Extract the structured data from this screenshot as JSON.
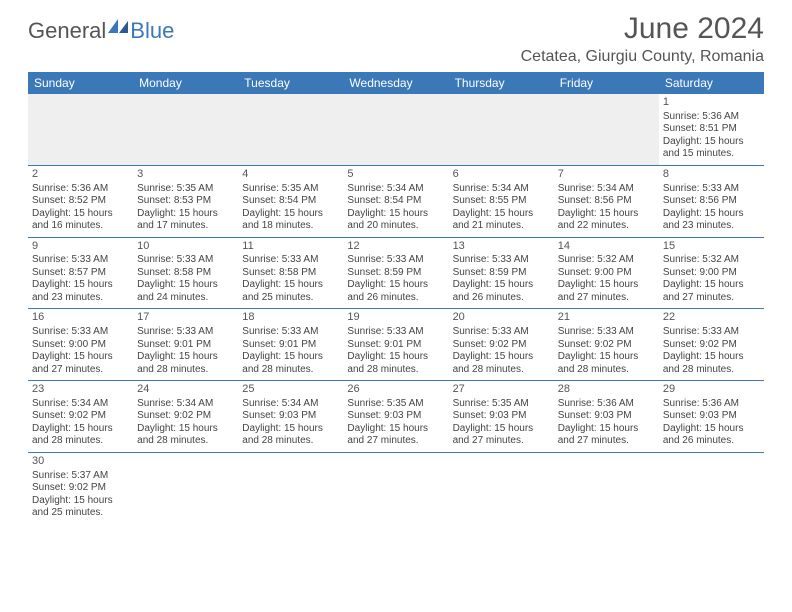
{
  "brand": {
    "part1": "General",
    "part2": "Blue"
  },
  "title": "June 2024",
  "location": "Cetatea, Giurgiu County, Romania",
  "colors": {
    "header_bg": "#3b78b8",
    "header_text": "#ffffff",
    "row_border": "#3b78b8",
    "blank_bg": "#efefef",
    "body_text": "#444444",
    "title_text": "#555555"
  },
  "day_headers": [
    "Sunday",
    "Monday",
    "Tuesday",
    "Wednesday",
    "Thursday",
    "Friday",
    "Saturday"
  ],
  "weeks": [
    [
      null,
      null,
      null,
      null,
      null,
      null,
      {
        "n": "1",
        "sr": "5:36 AM",
        "ss": "8:51 PM",
        "dl": "15 hours and 15 minutes."
      }
    ],
    [
      {
        "n": "2",
        "sr": "5:36 AM",
        "ss": "8:52 PM",
        "dl": "15 hours and 16 minutes."
      },
      {
        "n": "3",
        "sr": "5:35 AM",
        "ss": "8:53 PM",
        "dl": "15 hours and 17 minutes."
      },
      {
        "n": "4",
        "sr": "5:35 AM",
        "ss": "8:54 PM",
        "dl": "15 hours and 18 minutes."
      },
      {
        "n": "5",
        "sr": "5:34 AM",
        "ss": "8:54 PM",
        "dl": "15 hours and 20 minutes."
      },
      {
        "n": "6",
        "sr": "5:34 AM",
        "ss": "8:55 PM",
        "dl": "15 hours and 21 minutes."
      },
      {
        "n": "7",
        "sr": "5:34 AM",
        "ss": "8:56 PM",
        "dl": "15 hours and 22 minutes."
      },
      {
        "n": "8",
        "sr": "5:33 AM",
        "ss": "8:56 PM",
        "dl": "15 hours and 23 minutes."
      }
    ],
    [
      {
        "n": "9",
        "sr": "5:33 AM",
        "ss": "8:57 PM",
        "dl": "15 hours and 23 minutes."
      },
      {
        "n": "10",
        "sr": "5:33 AM",
        "ss": "8:58 PM",
        "dl": "15 hours and 24 minutes."
      },
      {
        "n": "11",
        "sr": "5:33 AM",
        "ss": "8:58 PM",
        "dl": "15 hours and 25 minutes."
      },
      {
        "n": "12",
        "sr": "5:33 AM",
        "ss": "8:59 PM",
        "dl": "15 hours and 26 minutes."
      },
      {
        "n": "13",
        "sr": "5:33 AM",
        "ss": "8:59 PM",
        "dl": "15 hours and 26 minutes."
      },
      {
        "n": "14",
        "sr": "5:32 AM",
        "ss": "9:00 PM",
        "dl": "15 hours and 27 minutes."
      },
      {
        "n": "15",
        "sr": "5:32 AM",
        "ss": "9:00 PM",
        "dl": "15 hours and 27 minutes."
      }
    ],
    [
      {
        "n": "16",
        "sr": "5:33 AM",
        "ss": "9:00 PM",
        "dl": "15 hours and 27 minutes."
      },
      {
        "n": "17",
        "sr": "5:33 AM",
        "ss": "9:01 PM",
        "dl": "15 hours and 28 minutes."
      },
      {
        "n": "18",
        "sr": "5:33 AM",
        "ss": "9:01 PM",
        "dl": "15 hours and 28 minutes."
      },
      {
        "n": "19",
        "sr": "5:33 AM",
        "ss": "9:01 PM",
        "dl": "15 hours and 28 minutes."
      },
      {
        "n": "20",
        "sr": "5:33 AM",
        "ss": "9:02 PM",
        "dl": "15 hours and 28 minutes."
      },
      {
        "n": "21",
        "sr": "5:33 AM",
        "ss": "9:02 PM",
        "dl": "15 hours and 28 minutes."
      },
      {
        "n": "22",
        "sr": "5:33 AM",
        "ss": "9:02 PM",
        "dl": "15 hours and 28 minutes."
      }
    ],
    [
      {
        "n": "23",
        "sr": "5:34 AM",
        "ss": "9:02 PM",
        "dl": "15 hours and 28 minutes."
      },
      {
        "n": "24",
        "sr": "5:34 AM",
        "ss": "9:02 PM",
        "dl": "15 hours and 28 minutes."
      },
      {
        "n": "25",
        "sr": "5:34 AM",
        "ss": "9:03 PM",
        "dl": "15 hours and 28 minutes."
      },
      {
        "n": "26",
        "sr": "5:35 AM",
        "ss": "9:03 PM",
        "dl": "15 hours and 27 minutes."
      },
      {
        "n": "27",
        "sr": "5:35 AM",
        "ss": "9:03 PM",
        "dl": "15 hours and 27 minutes."
      },
      {
        "n": "28",
        "sr": "5:36 AM",
        "ss": "9:03 PM",
        "dl": "15 hours and 27 minutes."
      },
      {
        "n": "29",
        "sr": "5:36 AM",
        "ss": "9:03 PM",
        "dl": "15 hours and 26 minutes."
      }
    ],
    [
      {
        "n": "30",
        "sr": "5:37 AM",
        "ss": "9:02 PM",
        "dl": "15 hours and 25 minutes."
      },
      null,
      null,
      null,
      null,
      null,
      null
    ]
  ],
  "labels": {
    "sunrise": "Sunrise:",
    "sunset": "Sunset:",
    "daylight": "Daylight:"
  }
}
